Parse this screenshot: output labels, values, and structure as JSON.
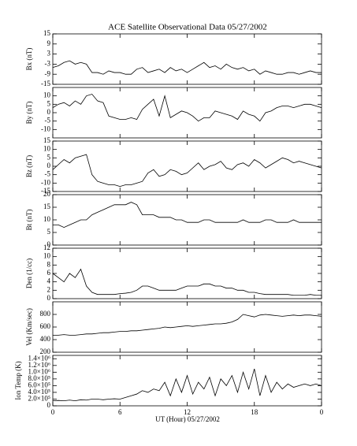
{
  "chart_data": [
    {
      "type": "line",
      "title": "ACE Satellite Observational Data   05/27/2002",
      "ylabel": "Bx (nT)",
      "color": "#000000",
      "x": [
        0,
        0.5,
        1,
        1.5,
        2,
        2.5,
        3,
        3.5,
        4,
        4.5,
        5,
        5.5,
        6,
        6.5,
        7,
        7.5,
        8,
        8.5,
        9,
        9.5,
        10,
        10.5,
        11,
        11.5,
        12,
        12.5,
        13,
        13.5,
        14,
        14.5,
        15,
        15.5,
        16,
        16.5,
        17,
        17.5,
        18,
        18.5,
        19,
        19.5,
        20,
        20.5,
        21,
        21.5,
        22,
        22.5,
        23,
        23.5,
        24
      ],
      "values": [
        -5,
        -4,
        -2,
        -1,
        -3,
        -2,
        -3,
        -8,
        -8,
        -9,
        -7,
        -8,
        -8,
        -9,
        -9,
        -6,
        -5,
        -8,
        -7,
        -6,
        -8,
        -5,
        -7,
        -6,
        -8,
        -6,
        -4,
        -2,
        -5,
        -4,
        -6,
        -3,
        -5,
        -6,
        -5,
        -7,
        -6,
        -9,
        -7,
        -8,
        -9,
        -9,
        -8,
        -8,
        -9,
        -8,
        -7,
        -8,
        -8
      ],
      "xlim": [
        0,
        24
      ],
      "ylim": [
        -15,
        15
      ],
      "yticks": [
        -15,
        -9,
        -3,
        3,
        9,
        15
      ]
    },
    {
      "type": "line",
      "ylabel": "By (nT)",
      "color": "#000000",
      "x": [
        0,
        0.5,
        1,
        1.5,
        2,
        2.5,
        3,
        3.5,
        4,
        4.5,
        5,
        5.5,
        6,
        6.5,
        7,
        7.5,
        8,
        8.5,
        9,
        9.5,
        10,
        10.5,
        11,
        11.5,
        12,
        12.5,
        13,
        13.5,
        14,
        14.5,
        15,
        15.5,
        16,
        16.5,
        17,
        17.5,
        18,
        18.5,
        19,
        19.5,
        20,
        20.5,
        21,
        21.5,
        22,
        22.5,
        23,
        23.5,
        24
      ],
      "values": [
        3,
        5,
        6,
        4,
        7,
        5,
        10,
        11,
        7,
        6,
        -2,
        -3,
        -4,
        -4,
        -3,
        -4,
        2,
        5,
        8,
        -2,
        10,
        -3,
        -1,
        1,
        0,
        -2,
        -5,
        -3,
        -3,
        1,
        0,
        -1,
        -2,
        -4,
        1,
        -1,
        -2,
        -5,
        0,
        1,
        3,
        4,
        4,
        3,
        4,
        5,
        5,
        4,
        3
      ],
      "xlim": [
        0,
        24
      ],
      "ylim": [
        -15,
        15
      ],
      "yticks": [
        -10,
        -5,
        0,
        5,
        10
      ]
    },
    {
      "type": "line",
      "ylabel": "Bz (nT)",
      "color": "#000000",
      "x": [
        0,
        0.5,
        1,
        1.5,
        2,
        2.5,
        3,
        3.5,
        4,
        4.5,
        5,
        5.5,
        6,
        6.5,
        7,
        7.5,
        8,
        8.5,
        9,
        9.5,
        10,
        10.5,
        11,
        11.5,
        12,
        12.5,
        13,
        13.5,
        14,
        14.5,
        15,
        15.5,
        16,
        16.5,
        17,
        17.5,
        18,
        18.5,
        19,
        19.5,
        20,
        20.5,
        21,
        21.5,
        22,
        22.5,
        23,
        23.5,
        24
      ],
      "values": [
        -2,
        1,
        4,
        2,
        5,
        6,
        7,
        -5,
        -9,
        -10,
        -11,
        -11,
        -12,
        -11,
        -11,
        -10,
        -9,
        -4,
        -2,
        -6,
        -5,
        -2,
        -3,
        -5,
        -4,
        -1,
        2,
        -2,
        0,
        1,
        3,
        -1,
        -2,
        1,
        2,
        0,
        4,
        2,
        -1,
        1,
        3,
        5,
        4,
        2,
        3,
        2,
        1,
        0,
        -1
      ],
      "xlim": [
        0,
        24
      ],
      "ylim": [
        -15,
        15
      ],
      "yticks": [
        -15,
        -10,
        -5,
        0,
        5,
        10,
        15
      ]
    },
    {
      "type": "line",
      "ylabel": "Bt (nT)",
      "color": "#000000",
      "x": [
        0,
        0.5,
        1,
        1.5,
        2,
        2.5,
        3,
        3.5,
        4,
        4.5,
        5,
        5.5,
        6,
        6.5,
        7,
        7.5,
        8,
        8.5,
        9,
        9.5,
        10,
        10.5,
        11,
        11.5,
        12,
        12.5,
        13,
        13.5,
        14,
        14.5,
        15,
        15.5,
        16,
        16.5,
        17,
        17.5,
        18,
        18.5,
        19,
        19.5,
        20,
        20.5,
        21,
        21.5,
        22,
        22.5,
        23,
        23.5,
        24
      ],
      "values": [
        8,
        8,
        7,
        8,
        9,
        10,
        10,
        12,
        13,
        14,
        15,
        16,
        16,
        16,
        17,
        16,
        12,
        12,
        12,
        11,
        11,
        11,
        10,
        10,
        9,
        9,
        9,
        10,
        10,
        9,
        9,
        9,
        9,
        9,
        10,
        9,
        9,
        9,
        10,
        10,
        9,
        9,
        9,
        10,
        9,
        9,
        9,
        9,
        9
      ],
      "xlim": [
        0,
        24
      ],
      "ylim": [
        0,
        20
      ],
      "yticks": [
        0,
        5,
        10,
        15,
        20
      ]
    },
    {
      "type": "line",
      "ylabel": "Den (1/cc)",
      "color": "#000000",
      "x": [
        0,
        0.5,
        1,
        1.5,
        2,
        2.5,
        3,
        3.5,
        4,
        4.5,
        5,
        5.5,
        6,
        6.5,
        7,
        7.5,
        8,
        8.5,
        9,
        9.5,
        10,
        10.5,
        11,
        11.5,
        12,
        12.5,
        13,
        13.5,
        14,
        14.5,
        15,
        15.5,
        16,
        16.5,
        17,
        17.5,
        18,
        18.5,
        19,
        19.5,
        20,
        20.5,
        21,
        21.5,
        22,
        22.5,
        23,
        23.5,
        24
      ],
      "values": [
        6,
        5,
        4,
        6,
        5,
        7,
        3,
        1.5,
        1,
        1,
        1,
        1,
        1.2,
        1.3,
        1.5,
        2,
        3,
        3,
        2.5,
        2,
        2,
        2,
        2,
        2.5,
        3,
        3,
        3,
        3.5,
        3.5,
        3,
        3,
        2.5,
        2.5,
        2,
        2,
        1.5,
        1.5,
        1.2,
        1,
        1,
        1,
        1,
        1,
        0.8,
        0.8,
        0.8,
        1,
        0.8,
        0.8
      ],
      "xlim": [
        0,
        24
      ],
      "ylim": [
        0,
        12
      ],
      "yticks": [
        0,
        2,
        4,
        6,
        8,
        10,
        12
      ]
    },
    {
      "type": "line",
      "ylabel": "Vel (Km/sec)",
      "color": "#000000",
      "x": [
        0,
        0.5,
        1,
        1.5,
        2,
        2.5,
        3,
        3.5,
        4,
        4.5,
        5,
        5.5,
        6,
        6.5,
        7,
        7.5,
        8,
        8.5,
        9,
        9.5,
        10,
        10.5,
        11,
        11.5,
        12,
        12.5,
        13,
        13.5,
        14,
        14.5,
        15,
        15.5,
        16,
        16.5,
        17,
        17.5,
        18,
        18.5,
        19,
        19.5,
        20,
        20.5,
        21,
        21.5,
        22,
        22.5,
        23,
        23.5,
        24
      ],
      "values": [
        470,
        470,
        480,
        470,
        470,
        480,
        490,
        490,
        500,
        510,
        510,
        520,
        530,
        530,
        540,
        540,
        550,
        560,
        570,
        580,
        600,
        590,
        600,
        610,
        620,
        610,
        620,
        630,
        640,
        650,
        650,
        660,
        680,
        720,
        800,
        780,
        760,
        790,
        800,
        790,
        780,
        770,
        780,
        790,
        780,
        790,
        790,
        780,
        770
      ],
      "xlim": [
        0,
        24
      ],
      "ylim": [
        200,
        1000
      ],
      "yticks": [
        200,
        400,
        600,
        800
      ]
    },
    {
      "type": "line",
      "ylabel": "Ion Temp (K)",
      "xlabel": "UT (Hour)  05/27/2002",
      "color": "#000000",
      "x": [
        0,
        0.5,
        1,
        1.5,
        2,
        2.5,
        3,
        3.5,
        4,
        4.5,
        5,
        5.5,
        6,
        6.5,
        7,
        7.5,
        8,
        8.5,
        9,
        9.5,
        10,
        10.5,
        11,
        11.5,
        12,
        12.5,
        13,
        13.5,
        14,
        14.5,
        15,
        15.5,
        16,
        16.5,
        17,
        17.5,
        18,
        18.5,
        19,
        19.5,
        20,
        20.5,
        21,
        21.5,
        22,
        22.5,
        23,
        23.5,
        24
      ],
      "values": [
        150000,
        160000,
        150000,
        170000,
        150000,
        180000,
        170000,
        200000,
        200000,
        180000,
        200000,
        210000,
        200000,
        250000,
        300000,
        350000,
        450000,
        400000,
        500000,
        450000,
        700000,
        300000,
        800000,
        400000,
        900000,
        350000,
        700000,
        500000,
        850000,
        300000,
        800000,
        600000,
        900000,
        400000,
        1000000,
        500000,
        1100000,
        300000,
        900000,
        400000,
        700000,
        500000,
        650000,
        550000,
        600000,
        650000,
        600000,
        650000,
        600000
      ],
      "xlim": [
        0,
        24
      ],
      "ylim": [
        0,
        1500000
      ],
      "yticks": [
        0,
        {
          "value": 200000,
          "label": "2.0×10⁵"
        },
        {
          "value": 400000,
          "label": "4.0×10⁵"
        },
        {
          "value": 600000,
          "label": "6.0×10⁵"
        },
        {
          "value": 800000,
          "label": "8.0×10⁵"
        },
        {
          "value": 1000000,
          "label": "1.0×10⁶"
        },
        {
          "value": 1200000,
          "label": "1.2×10⁶"
        },
        {
          "value": 1400000,
          "label": "1.4×10⁶"
        }
      ],
      "xticks": [
        0,
        6,
        12,
        18,
        {
          "value": 24,
          "label": "0"
        }
      ]
    }
  ]
}
